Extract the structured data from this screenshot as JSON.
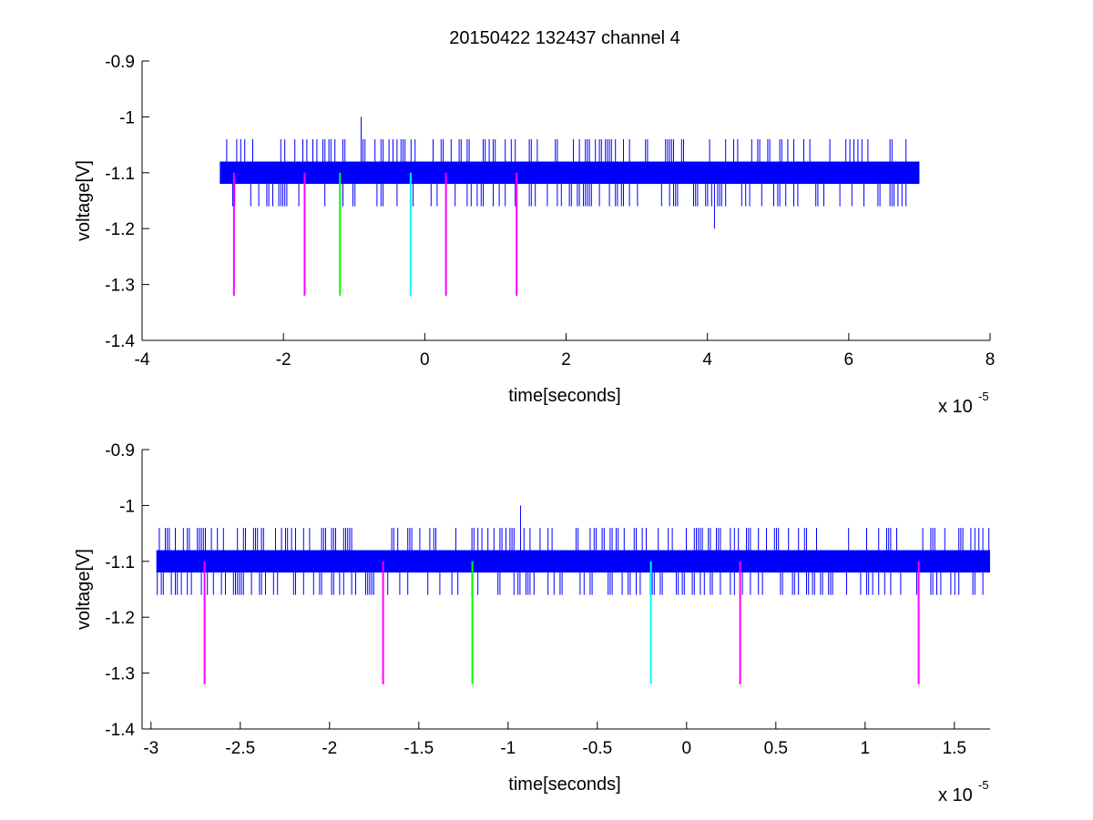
{
  "title": "20150422 132437 channel 4",
  "colors": {
    "signal": "#0000ff",
    "marker_magenta": "#ff00ff",
    "marker_green": "#00ff00",
    "marker_cyan": "#00ffff",
    "axes": "#000000",
    "background": "#ffffff"
  },
  "chart_data": [
    {
      "type": "line",
      "title": "20150422 132437 channel 4",
      "xlabel": "time[seconds]",
      "ylabel": "voltage[V]",
      "x_exponent_label": "x 10",
      "x_exponent": "-5",
      "xlim": [
        -4e-05,
        8e-05
      ],
      "ylim": [
        -1.4,
        -0.9
      ],
      "xticks": [
        -4e-05,
        -2e-05,
        0,
        2e-05,
        4e-05,
        6e-05,
        8e-05
      ],
      "xtick_labels": [
        "-4",
        "-2",
        "0",
        "2",
        "4",
        "6",
        "8"
      ],
      "yticks": [
        -0.9,
        -1,
        -1.1,
        -1.2,
        -1.3,
        -1.4
      ],
      "ytick_labels": [
        "-0.9",
        "-1",
        "-1.1",
        "-1.2",
        "-1.3",
        "-1.4"
      ],
      "grid": false,
      "series": [
        {
          "kind": "signal",
          "color": "#0000ff",
          "x_range": [
            -2.9e-05,
            7e-05
          ],
          "band": [
            -1.12,
            -1.08
          ],
          "typical_spikes": [
            -1.16,
            -1.04
          ],
          "extreme_points": [
            {
              "x": -9e-06,
              "y": -1.0
            },
            {
              "x": 4.1e-05,
              "y": -1.2
            }
          ]
        },
        {
          "kind": "markers",
          "y_range": [
            -1.32,
            -1.1
          ],
          "lines": [
            {
              "x": -2.7e-05,
              "color": "#ff00ff"
            },
            {
              "x": -1.7e-05,
              "color": "#ff00ff"
            },
            {
              "x": -1.2e-05,
              "color": "#00ff00"
            },
            {
              "x": -2e-06,
              "color": "#00ffff"
            },
            {
              "x": 3e-06,
              "color": "#ff00ff"
            },
            {
              "x": 1.3e-05,
              "color": "#ff00ff"
            }
          ]
        }
      ]
    },
    {
      "type": "line",
      "title": "",
      "xlabel": "time[seconds]",
      "ylabel": "voltage[V]",
      "x_exponent_label": "x 10",
      "x_exponent": "-5",
      "xlim": [
        -3.05e-05,
        1.7e-05
      ],
      "ylim": [
        -1.4,
        -0.9
      ],
      "xticks": [
        -3e-05,
        -2.5e-05,
        -2e-05,
        -1.5e-05,
        -1e-05,
        -5e-06,
        0,
        5e-06,
        1e-05,
        1.5e-05
      ],
      "xtick_labels": [
        "-3",
        "-2.5",
        "-2",
        "-1.5",
        "-1",
        "-0.5",
        "0",
        "0.5",
        "1",
        "1.5"
      ],
      "yticks": [
        -0.9,
        -1,
        -1.1,
        -1.2,
        -1.3,
        -1.4
      ],
      "ytick_labels": [
        "-0.9",
        "-1",
        "-1.1",
        "-1.2",
        "-1.3",
        "-1.4"
      ],
      "grid": false,
      "series": [
        {
          "kind": "signal",
          "color": "#0000ff",
          "x_range": [
            -2.97e-05,
            1.7e-05
          ],
          "band": [
            -1.12,
            -1.08
          ],
          "typical_spikes": [
            -1.16,
            -1.04
          ],
          "extreme_points": [
            {
              "x": -9.3e-06,
              "y": -1.0
            }
          ]
        },
        {
          "kind": "markers",
          "y_range": [
            -1.32,
            -1.1
          ],
          "lines": [
            {
              "x": -2.7e-05,
              "color": "#ff00ff"
            },
            {
              "x": -1.7e-05,
              "color": "#ff00ff"
            },
            {
              "x": -1.2e-05,
              "color": "#00ff00"
            },
            {
              "x": -2e-06,
              "color": "#00ffff"
            },
            {
              "x": 3e-06,
              "color": "#ff00ff"
            },
            {
              "x": 1.3e-05,
              "color": "#ff00ff"
            }
          ]
        }
      ]
    }
  ]
}
